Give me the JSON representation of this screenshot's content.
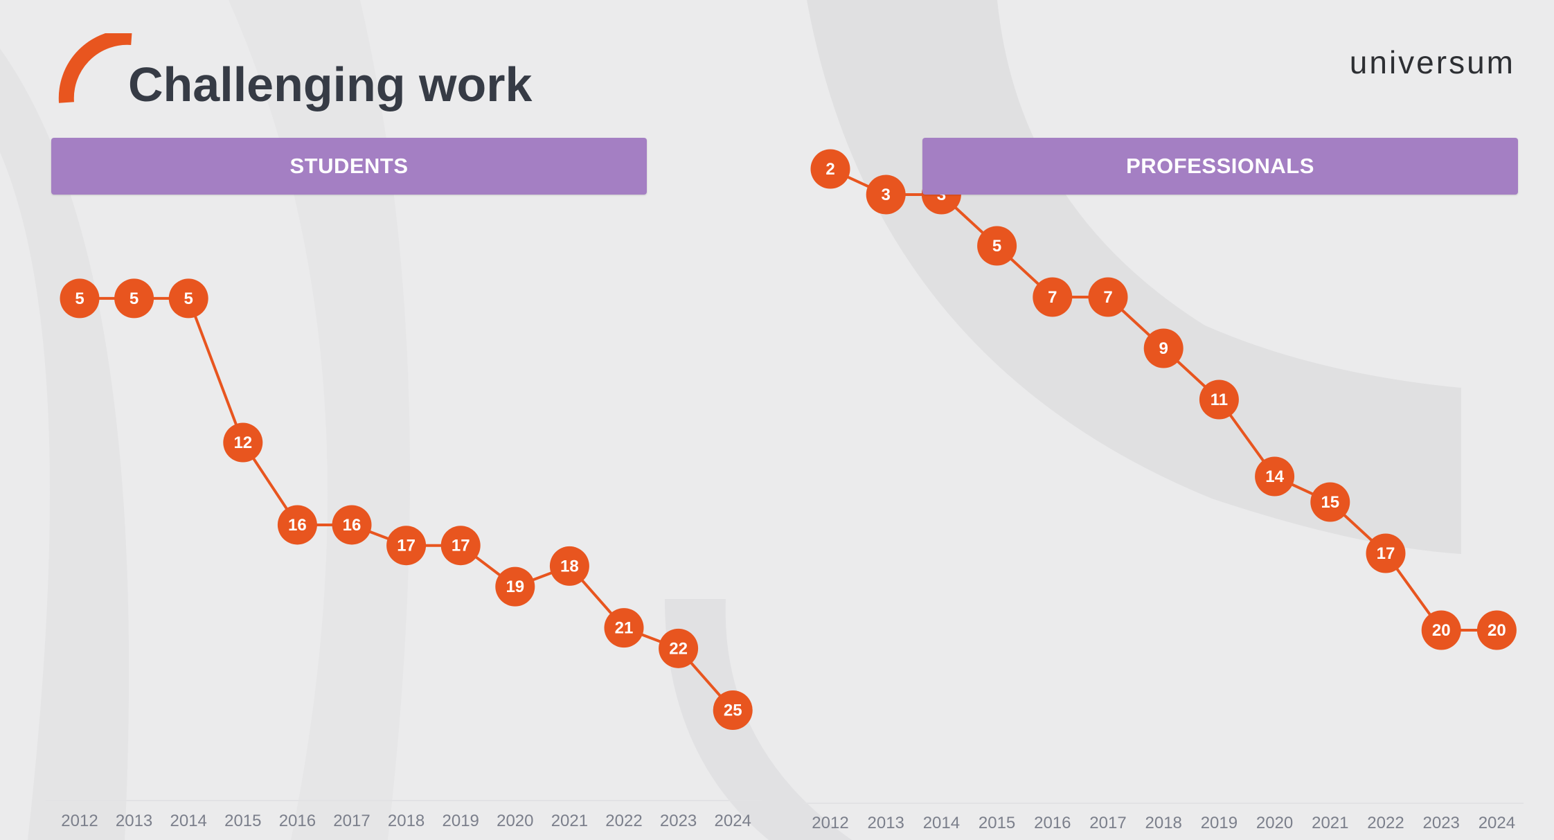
{
  "page": {
    "title": "Challenging work",
    "brand": "universum"
  },
  "colors": {
    "accent": "#e8551f",
    "header": "#a47fc3",
    "background": "#ebebec",
    "title": "#363b45",
    "tick": "#7b7f8b"
  },
  "chart_data": [
    {
      "type": "line",
      "title": "STUDENTS",
      "x": [
        "2012",
        "2013",
        "2014",
        "2015",
        "2016",
        "2017",
        "2018",
        "2019",
        "2020",
        "2021",
        "2022",
        "2023",
        "2024"
      ],
      "series": [
        {
          "values": [
            5,
            5,
            5,
            12,
            16,
            16,
            17,
            17,
            19,
            18,
            21,
            22,
            25
          ]
        }
      ],
      "y_axis": "rank, inverted (1 at top)",
      "ylim": [
        1,
        27
      ],
      "data_labels": true,
      "grid": false,
      "legend": "none"
    },
    {
      "type": "line",
      "title": "PROFESSIONALS",
      "x": [
        "2012",
        "2013",
        "2014",
        "2015",
        "2016",
        "2017",
        "2018",
        "2019",
        "2020",
        "2021",
        "2022",
        "2023",
        "2024"
      ],
      "series": [
        {
          "values": [
            2,
            3,
            3,
            5,
            7,
            7,
            9,
            11,
            14,
            15,
            17,
            20,
            20
          ]
        }
      ],
      "y_axis": "rank, inverted (1 at top)",
      "ylim": [
        1,
        24
      ],
      "data_labels": true,
      "grid": false,
      "legend": "none"
    }
  ]
}
